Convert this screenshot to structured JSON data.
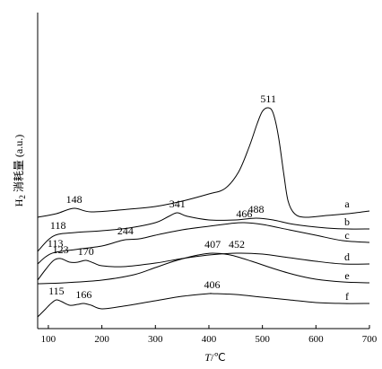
{
  "chart_data": {
    "type": "line",
    "xlabel_var": "T",
    "xlabel_unit": "/℃",
    "ylabel_sym": "H",
    "ylabel_sub": "2",
    "ylabel_rest": " 消耗量 (a.u.)",
    "xlim": [
      80,
      700
    ],
    "xticks": [
      100,
      200,
      300,
      400,
      500,
      600,
      700
    ],
    "grid": false,
    "series": [
      {
        "name": "a",
        "offset": 118,
        "points": [
          [
            80,
            0
          ],
          [
            115,
            4
          ],
          [
            148,
            10
          ],
          [
            180,
            6
          ],
          [
            250,
            9
          ],
          [
            300,
            12
          ],
          [
            350,
            18
          ],
          [
            400,
            26
          ],
          [
            430,
            32
          ],
          [
            455,
            50
          ],
          [
            475,
            78
          ],
          [
            490,
            104
          ],
          [
            500,
            118
          ],
          [
            511,
            122
          ],
          [
            520,
            116
          ],
          [
            530,
            90
          ],
          [
            540,
            48
          ],
          [
            548,
            18
          ],
          [
            560,
            4
          ],
          [
            580,
            0
          ],
          [
            620,
            2
          ],
          [
            660,
            4
          ],
          [
            700,
            7
          ]
        ],
        "peaks": [
          {
            "value": "148",
            "x": 148,
            "y": 10
          },
          {
            "value": "511",
            "x": 511,
            "y": 122
          }
        ]
      },
      {
        "name": "b",
        "offset": 99,
        "points": [
          [
            80,
            -19
          ],
          [
            100,
            -6
          ],
          [
            118,
            0
          ],
          [
            150,
            2
          ],
          [
            200,
            4
          ],
          [
            250,
            7
          ],
          [
            300,
            13
          ],
          [
            325,
            20
          ],
          [
            341,
            24
          ],
          [
            360,
            20
          ],
          [
            400,
            16
          ],
          [
            450,
            16
          ],
          [
            488,
            18
          ],
          [
            520,
            16
          ],
          [
            560,
            11
          ],
          [
            620,
            7
          ],
          [
            660,
            6
          ],
          [
            700,
            6
          ]
        ],
        "peaks": [
          {
            "value": "118",
            "x": 118,
            "y": 0
          },
          {
            "value": "341",
            "x": 341,
            "y": 24
          },
          {
            "value": "488",
            "x": 488,
            "y": 18
          }
        ]
      },
      {
        "name": "c",
        "offset": 80,
        "points": [
          [
            80,
            -14
          ],
          [
            95,
            -6
          ],
          [
            113,
            -1
          ],
          [
            150,
            2
          ],
          [
            200,
            6
          ],
          [
            230,
            11
          ],
          [
            244,
            13
          ],
          [
            270,
            14
          ],
          [
            300,
            18
          ],
          [
            350,
            24
          ],
          [
            400,
            28
          ],
          [
            440,
            31
          ],
          [
            466,
            32
          ],
          [
            500,
            30
          ],
          [
            550,
            24
          ],
          [
            600,
            18
          ],
          [
            650,
            12
          ],
          [
            700,
            10
          ]
        ],
        "peaks": [
          {
            "value": "113",
            "x": 113,
            "y": -1
          },
          {
            "value": "244",
            "x": 244,
            "y": 13
          },
          {
            "value": "466",
            "x": 466,
            "y": 32
          }
        ]
      },
      {
        "name": "d",
        "offset": 60,
        "points": [
          [
            80,
            -12
          ],
          [
            95,
            0
          ],
          [
            110,
            10
          ],
          [
            123,
            12
          ],
          [
            140,
            8
          ],
          [
            155,
            8
          ],
          [
            170,
            10
          ],
          [
            185,
            7
          ],
          [
            200,
            4
          ],
          [
            240,
            3
          ],
          [
            300,
            7
          ],
          [
            350,
            12
          ],
          [
            400,
            16
          ],
          [
            452,
            18
          ],
          [
            500,
            17
          ],
          [
            550,
            13
          ],
          [
            600,
            9
          ],
          [
            650,
            6
          ],
          [
            700,
            6
          ]
        ],
        "peaks": [
          {
            "value": "123",
            "x": 123,
            "y": 12
          },
          {
            "value": "170",
            "x": 170,
            "y": 10
          },
          {
            "value": "452",
            "x": 452,
            "y": 18
          }
        ]
      },
      {
        "name": "e",
        "offset": 42,
        "points": [
          [
            80,
            2
          ],
          [
            130,
            3
          ],
          [
            200,
            6
          ],
          [
            260,
            12
          ],
          [
            300,
            20
          ],
          [
            340,
            28
          ],
          [
            380,
            34
          ],
          [
            407,
            36
          ],
          [
            440,
            34
          ],
          [
            480,
            27
          ],
          [
            520,
            19
          ],
          [
            560,
            12
          ],
          [
            600,
            7
          ],
          [
            650,
            4
          ],
          [
            700,
            3
          ]
        ],
        "peaks": [
          {
            "value": "407",
            "x": 407,
            "y": 36
          }
        ]
      },
      {
        "name": "f",
        "offset": 20,
        "points": [
          [
            80,
            -13
          ],
          [
            95,
            -4
          ],
          [
            105,
            2
          ],
          [
            115,
            6
          ],
          [
            125,
            4
          ],
          [
            140,
            0
          ],
          [
            155,
            1
          ],
          [
            166,
            2
          ],
          [
            180,
            0
          ],
          [
            200,
            -4
          ],
          [
            240,
            -1
          ],
          [
            300,
            5
          ],
          [
            350,
            10
          ],
          [
            400,
            13
          ],
          [
            406,
            13
          ],
          [
            450,
            12
          ],
          [
            500,
            9
          ],
          [
            550,
            6
          ],
          [
            600,
            3
          ],
          [
            650,
            2
          ],
          [
            700,
            2
          ]
        ],
        "peaks": [
          {
            "value": "115",
            "x": 115,
            "y": 6
          },
          {
            "value": "166",
            "x": 166,
            "y": 2
          },
          {
            "value": "406",
            "x": 406,
            "y": 13
          }
        ]
      }
    ]
  }
}
